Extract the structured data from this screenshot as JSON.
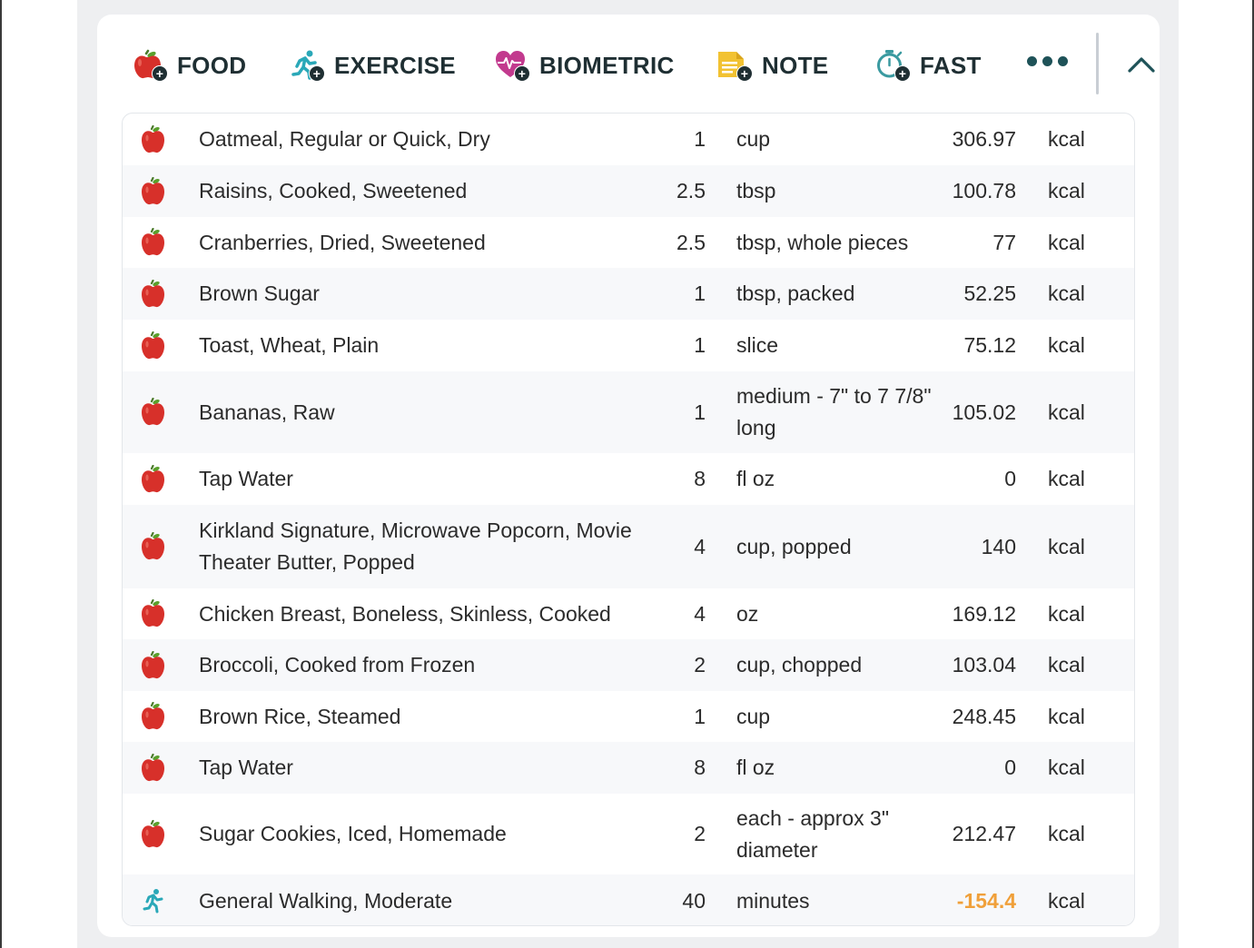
{
  "toolbar": {
    "buttons": [
      {
        "label": "FOOD",
        "icon": "apple-plus-icon"
      },
      {
        "label": "EXERCISE",
        "icon": "runner-plus-icon"
      },
      {
        "label": "BIOMETRIC",
        "icon": "heart-pulse-plus-icon"
      },
      {
        "label": "NOTE",
        "icon": "note-plus-icon"
      },
      {
        "label": "FAST",
        "icon": "stopwatch-plus-icon"
      }
    ],
    "more_icon": "more-dots-icon",
    "collapse_icon": "chevron-up-icon"
  },
  "colors": {
    "apple_red": "#d7302a",
    "exercise_teal": "#2aa8b8",
    "heart_magenta": "#c23a8e",
    "note_yellow": "#f2c232",
    "fast_teal": "#3a9aa0",
    "negative_orange": "#f0a03a",
    "text_dark": "#1f2f33"
  },
  "entries": [
    {
      "type": "food",
      "icon": "apple-icon",
      "name": "Oatmeal, Regular or Quick, Dry",
      "qty": "1",
      "unit": "cup",
      "calories": "306.97",
      "unit_label": "kcal"
    },
    {
      "type": "food",
      "icon": "apple-icon",
      "name": "Raisins, Cooked, Sweetened",
      "qty": "2.5",
      "unit": "tbsp",
      "calories": "100.78",
      "unit_label": "kcal"
    },
    {
      "type": "food",
      "icon": "apple-icon",
      "name": "Cranberries, Dried, Sweetened",
      "qty": "2.5",
      "unit": "tbsp, whole pieces",
      "calories": "77",
      "unit_label": "kcal"
    },
    {
      "type": "food",
      "icon": "apple-icon",
      "name": "Brown Sugar",
      "qty": "1",
      "unit": "tbsp, packed",
      "calories": "52.25",
      "unit_label": "kcal"
    },
    {
      "type": "food",
      "icon": "apple-icon",
      "name": "Toast, Wheat, Plain",
      "qty": "1",
      "unit": "slice",
      "calories": "75.12",
      "unit_label": "kcal"
    },
    {
      "type": "food",
      "icon": "apple-icon",
      "name": "Bananas, Raw",
      "qty": "1",
      "unit": "medium - 7\" to 7 7/8\" long",
      "calories": "105.02",
      "unit_label": "kcal"
    },
    {
      "type": "food",
      "icon": "apple-icon",
      "name": "Tap Water",
      "qty": "8",
      "unit": "fl oz",
      "calories": "0",
      "unit_label": "kcal"
    },
    {
      "type": "food",
      "icon": "apple-icon",
      "name": "Kirkland Signature, Microwave Popcorn, Movie Theater Butter, Popped",
      "qty": "4",
      "unit": "cup, popped",
      "calories": "140",
      "unit_label": "kcal"
    },
    {
      "type": "food",
      "icon": "apple-icon",
      "name": "Chicken Breast, Boneless, Skinless, Cooked",
      "qty": "4",
      "unit": "oz",
      "calories": "169.12",
      "unit_label": "kcal"
    },
    {
      "type": "food",
      "icon": "apple-icon",
      "name": "Broccoli, Cooked from Frozen",
      "qty": "2",
      "unit": "cup, chopped",
      "calories": "103.04",
      "unit_label": "kcal"
    },
    {
      "type": "food",
      "icon": "apple-icon",
      "name": "Brown Rice, Steamed",
      "qty": "1",
      "unit": "cup",
      "calories": "248.45",
      "unit_label": "kcal"
    },
    {
      "type": "food",
      "icon": "apple-icon",
      "name": "Tap Water",
      "qty": "8",
      "unit": "fl oz",
      "calories": "0",
      "unit_label": "kcal"
    },
    {
      "type": "food",
      "icon": "apple-icon",
      "name": "Sugar Cookies, Iced, Homemade",
      "qty": "2",
      "unit": "each - approx 3\" diameter",
      "calories": "212.47",
      "unit_label": "kcal"
    },
    {
      "type": "exercise",
      "icon": "runner-icon",
      "name": "General Walking, Moderate",
      "qty": "40",
      "unit": "minutes",
      "calories": "-154.4",
      "unit_label": "kcal"
    }
  ]
}
